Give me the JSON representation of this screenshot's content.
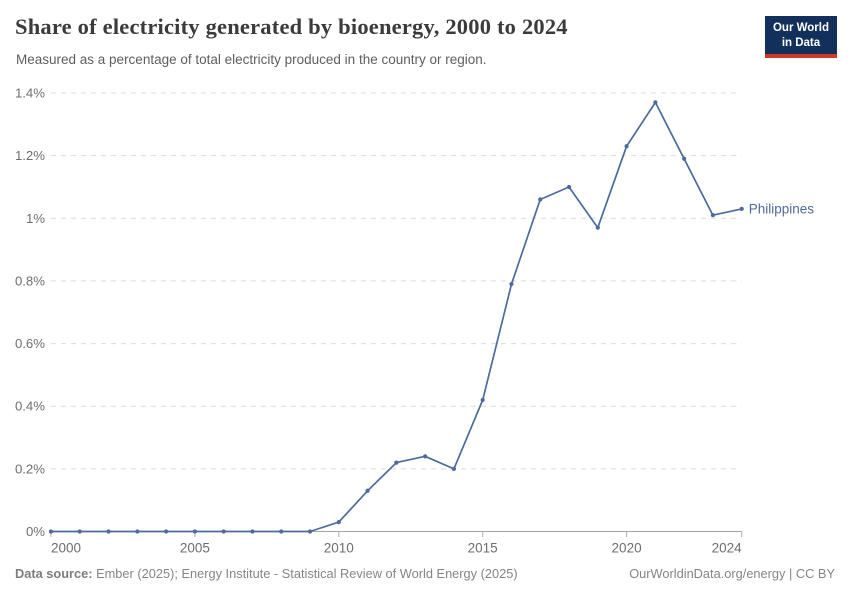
{
  "header": {
    "title": "Share of electricity generated by bioenergy, 2000 to 2024",
    "subtitle": "Measured as a percentage of total electricity produced in the country or region.",
    "logo": {
      "line1": "Our World",
      "line2": "in Data"
    }
  },
  "chart_data": {
    "type": "line",
    "title": "Share of electricity generated by bioenergy, 2000 to 2024",
    "subtitle": "Measured as a percentage of total electricity produced in the country or region.",
    "xlabel": "",
    "ylabel": "",
    "unit": "%",
    "xlim": [
      2000,
      2024
    ],
    "ylim": [
      0,
      1.4
    ],
    "grid": "horizontal-dashed",
    "legend_position": "end-of-line-label",
    "x_ticks": [
      2000,
      2005,
      2010,
      2015,
      2020,
      2024
    ],
    "y_ticks": [
      0,
      0.2,
      0.4,
      0.6,
      0.8,
      1,
      1.2,
      1.4
    ],
    "y_tick_labels": [
      "0%",
      "0.2%",
      "0.4%",
      "0.6%",
      "0.8%",
      "1%",
      "1.2%",
      "1.4%"
    ],
    "series": [
      {
        "name": "Philippines",
        "color": "#4C6A9C",
        "x": [
          2000,
          2001,
          2002,
          2003,
          2004,
          2005,
          2006,
          2007,
          2008,
          2009,
          2010,
          2011,
          2012,
          2013,
          2014,
          2015,
          2016,
          2017,
          2018,
          2019,
          2020,
          2021,
          2022,
          2023,
          2024
        ],
        "values": [
          0,
          0,
          0,
          0,
          0,
          0,
          0,
          0,
          0,
          0,
          0.03,
          0.13,
          0.22,
          0.24,
          0.2,
          0.42,
          0.79,
          1.06,
          1.1,
          0.97,
          1.23,
          1.37,
          1.19,
          1.01,
          1.03
        ]
      }
    ]
  },
  "footer": {
    "source_label": "Data source:",
    "source_text": "Ember (2025); Energy Institute - Statistical Review of World Energy (2025)",
    "link_text": "OurWorldinData.org/energy | CC BY"
  },
  "colors": {
    "line": "#4C6A9C",
    "entity_label": "#4C6A9C",
    "grid": "#DCDCDC",
    "axis": "#A3A3A3",
    "tick": "#B0B0B0",
    "tick_label": "#6E6E6E",
    "logo_bg": "#12305B",
    "logo_accent": "#D23A28"
  }
}
